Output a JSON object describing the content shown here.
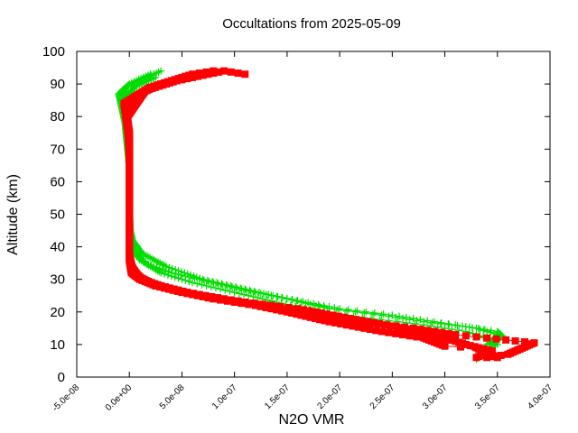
{
  "chart_data": {
    "type": "scatter",
    "title": "Occultations from 2025-05-09",
    "xlabel": "N2O VMR",
    "ylabel": "Altitude (km)",
    "xlim": [
      -5e-08,
      4e-07
    ],
    "ylim": [
      0,
      100
    ],
    "x_ticks": [
      "-5.0e-08",
      "0.0e+00",
      "5.0e-08",
      "1.0e-07",
      "1.5e-07",
      "2.0e-07",
      "2.5e-07",
      "3.0e-07",
      "3.5e-07",
      "4.0e-07"
    ],
    "x_tick_values": [
      -5e-08,
      0,
      5e-08,
      1e-07,
      1.5e-07,
      2e-07,
      2.5e-07,
      3e-07,
      3.5e-07,
      4e-07
    ],
    "y_ticks": [
      "0",
      "10",
      "20",
      "30",
      "40",
      "50",
      "60",
      "70",
      "80",
      "90",
      "100"
    ],
    "y_tick_values": [
      0,
      10,
      20,
      30,
      40,
      50,
      60,
      70,
      80,
      90,
      100
    ],
    "grid": false,
    "series": [
      {
        "marker": "plus",
        "color": "#00dd00",
        "profiles": [
          [
            [
              3.3e-07,
              5.5
            ],
            [
              3.35e-07,
              8
            ],
            [
              3.5e-07,
              10
            ],
            [
              3.4e-07,
              12
            ],
            [
              3.2e-07,
              14
            ],
            [
              2.8e-07,
              16
            ],
            [
              2.3e-07,
              18
            ],
            [
              1.8e-07,
              20
            ],
            [
              1.4e-07,
              23
            ],
            [
              1e-07,
              26
            ],
            [
              6e-08,
              29
            ],
            [
              3e-08,
              32
            ],
            [
              1e-08,
              36
            ],
            [
              3e-09,
              40
            ],
            [
              1e-09,
              44
            ],
            [
              0,
              50
            ],
            [
              0,
              60
            ],
            [
              0,
              70
            ],
            [
              -3e-09,
              80
            ],
            [
              -8e-09,
              86
            ],
            [
              -3e-09,
              89
            ],
            [
              1e-08,
              91
            ],
            [
              3e-08,
              94
            ]
          ],
          [
            [
              3.4e-07,
              10
            ],
            [
              3.55e-07,
              12.5
            ],
            [
              3.5e-07,
              14
            ],
            [
              3.2e-07,
              15.5
            ],
            [
              2.8e-07,
              17
            ],
            [
              2.4e-07,
              19
            ],
            [
              1.9e-07,
              21
            ],
            [
              1.5e-07,
              24
            ],
            [
              1.1e-07,
              27
            ],
            [
              7e-08,
              30
            ],
            [
              3.5e-08,
              34
            ],
            [
              1.2e-08,
              38
            ],
            [
              3e-09,
              42
            ],
            [
              0,
              46
            ],
            [
              0,
              55
            ],
            [
              0,
              65
            ],
            [
              -4e-09,
              78
            ],
            [
              -1e-08,
              87
            ],
            [
              0,
              90
            ],
            [
              2e-08,
              93
            ]
          ],
          [
            [
              3.45e-07,
              11
            ],
            [
              3.5e-07,
              13
            ],
            [
              3.3e-07,
              15
            ],
            [
              2.9e-07,
              17
            ],
            [
              2.5e-07,
              19
            ],
            [
              2e-07,
              21
            ],
            [
              1.6e-07,
              23.5
            ],
            [
              1.2e-07,
              26
            ],
            [
              8e-08,
              29
            ],
            [
              4e-08,
              32
            ],
            [
              1.5e-08,
              35
            ],
            [
              5e-09,
              39
            ],
            [
              1e-09,
              43
            ],
            [
              0,
              52
            ],
            [
              0,
              64
            ],
            [
              -2e-09,
              76
            ],
            [
              -6e-09,
              85
            ],
            [
              5e-09,
              89
            ],
            [
              2.5e-08,
              92
            ]
          ]
        ]
      },
      {
        "marker": "square",
        "color": "#ff0000",
        "profiles": [
          [
            [
              3.3e-07,
              6
            ],
            [
              3.45e-07,
              8
            ],
            [
              3.2e-07,
              10
            ],
            [
              3e-07,
              12
            ],
            [
              2.6e-07,
              15
            ],
            [
              2.1e-07,
              18
            ],
            [
              1.6e-07,
              21
            ],
            [
              1.1e-07,
              23
            ],
            [
              7e-08,
              25
            ],
            [
              4e-08,
              27
            ],
            [
              2e-08,
              29
            ],
            [
              8e-09,
              31
            ],
            [
              2e-09,
              34
            ],
            [
              0,
              38
            ],
            [
              0,
              45
            ],
            [
              0,
              55
            ],
            [
              0,
              65
            ],
            [
              0,
              75
            ],
            [
              -3e-09,
              82
            ],
            [
              5e-09,
              86
            ],
            [
              2e-08,
              89
            ],
            [
              4e-08,
              91
            ],
            [
              6e-08,
              93
            ],
            [
              8e-08,
              94
            ]
          ],
          [
            [
              3.4e-07,
              6
            ],
            [
              3.6e-07,
              7
            ],
            [
              3.85e-07,
              10.5
            ],
            [
              3.4e-07,
              12
            ],
            [
              3.1e-07,
              13
            ],
            [
              2.7e-07,
              15
            ],
            [
              2.2e-07,
              17
            ],
            [
              1.7e-07,
              20
            ],
            [
              1.3e-07,
              22
            ],
            [
              9e-08,
              24
            ],
            [
              5.5e-08,
              26
            ],
            [
              3e-08,
              28
            ],
            [
              1.2e-08,
              30
            ],
            [
              3e-09,
              33
            ],
            [
              0,
              37
            ],
            [
              0,
              48
            ],
            [
              0,
              60
            ],
            [
              0,
              72
            ],
            [
              -5e-09,
              84
            ],
            [
              1e-08,
              87
            ],
            [
              3e-08,
              90
            ],
            [
              6e-08,
              92
            ],
            [
              9e-08,
              94
            ],
            [
              1.1e-07,
              93
            ]
          ],
          [
            [
              3.5e-07,
              6
            ],
            [
              3.3e-07,
              9
            ],
            [
              3e-07,
              9.5
            ],
            [
              2.8e-07,
              12
            ],
            [
              2.4e-07,
              14
            ],
            [
              1.9e-07,
              17
            ],
            [
              1.5e-07,
              20
            ],
            [
              1.2e-07,
              22
            ],
            [
              8e-08,
              24
            ],
            [
              5e-08,
              26
            ],
            [
              2.5e-08,
              28
            ],
            [
              1e-08,
              30
            ],
            [
              2e-09,
              32
            ],
            [
              0,
              36
            ],
            [
              0,
              50
            ],
            [
              0,
              68
            ],
            [
              -2e-09,
              80
            ],
            [
              1.5e-08,
              88
            ],
            [
              4.5e-08,
              91
            ],
            [
              7e-08,
              93
            ]
          ]
        ]
      }
    ]
  }
}
